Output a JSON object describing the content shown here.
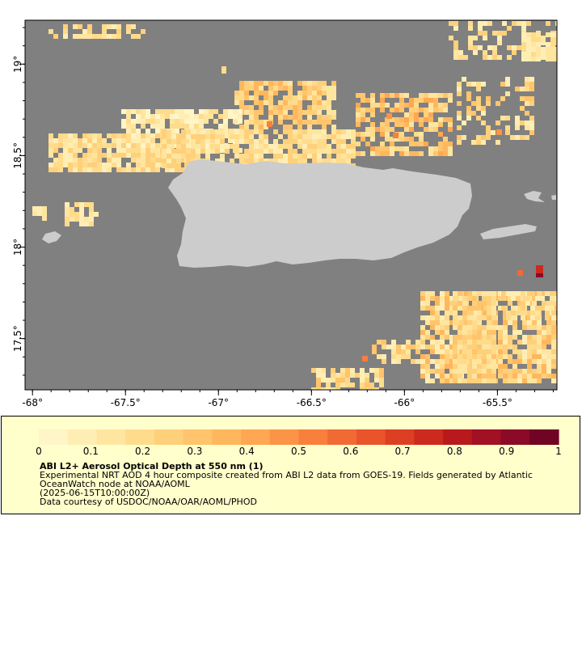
{
  "map": {
    "colors": {
      "ocean": "#808080",
      "land": "#cccccc",
      "aod_scale": [
        "#fff5c8",
        "#ffeeb4",
        "#ffe6a0",
        "#ffdb8c",
        "#ffd07a",
        "#ffc46c",
        "#ffb75e",
        "#ffa752",
        "#fc9447",
        "#f97f3d",
        "#f26a33",
        "#e9542a",
        "#dc3f22",
        "#cc2a1e",
        "#b8191d",
        "#a11023",
        "#8a0a27",
        "#6f0424"
      ]
    },
    "lon_ticks": [
      "-68°",
      "-67.5°",
      "-67°",
      "-66.5°",
      "-66°",
      "-65.5°"
    ],
    "lat_ticks": [
      "19°",
      "18.5°",
      "18°",
      "17.5°"
    ],
    "lon_values": [
      -68,
      -67.5,
      -67,
      -66.5,
      -66,
      -65.5
    ],
    "lat_values": [
      19,
      18.5,
      18,
      17.5
    ],
    "extent": {
      "lon": [
        -68.04,
        -65.18
      ],
      "lat": [
        17.22,
        19.24
      ]
    }
  },
  "legend": {
    "tick_labels": [
      "0",
      "0.1",
      "0.2",
      "0.3",
      "0.4",
      "0.5",
      "0.6",
      "0.7",
      "0.8",
      "0.9",
      "1"
    ],
    "tick_values": [
      0,
      0.1,
      0.2,
      0.3,
      0.4,
      0.5,
      0.6,
      0.7,
      0.8,
      0.9,
      1
    ],
    "title": "ABI L2+ Aerosol Optical Depth at 550 nm (1)",
    "line1": "Experimental NRT AOD 4 hour composite created from ABI L2 data from GOES-19. Fields generated by Atlantic OceanWatch node at NOAA/AOML",
    "line2": "(2025-06-15T10:00:00Z)",
    "line3": "Data courtesy of USDOC/NOAA/OAR/AOML/PHOD"
  }
}
